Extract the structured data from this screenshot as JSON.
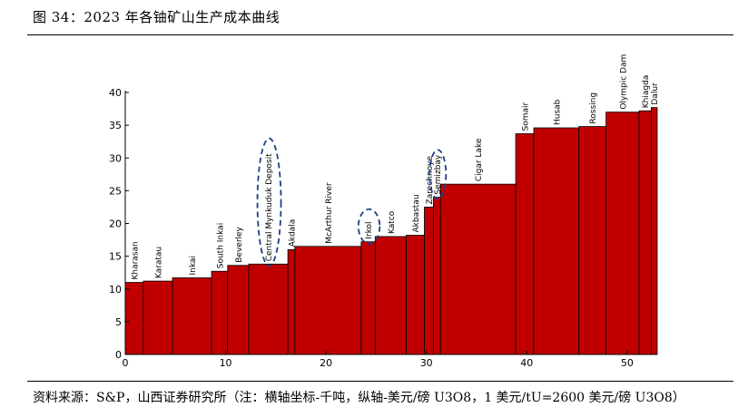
{
  "figure_title": "图 34：2023 年各铀矿山生产成本曲线",
  "source_note": "资料来源：S&P，山西证券研究所（注：横轴坐标-千吨，纵轴-美元/磅 U3O8，1 美元/tU=2600 美元/磅 U3O8）",
  "colors": {
    "bar": "#c00000",
    "highlight": "#1f3d8a"
  },
  "chart_data": {
    "type": "bar",
    "subtype": "cost-curve",
    "title": "2023 年各铀矿山生产成本曲线",
    "xlabel": "千吨",
    "ylabel": "美元/磅 U3O8",
    "xlim": [
      0,
      53
    ],
    "ylim": [
      0,
      40
    ],
    "xticks": [
      0,
      10,
      20,
      30,
      40,
      50
    ],
    "yticks": [
      0,
      5,
      10,
      15,
      20,
      25,
      30,
      35,
      40
    ],
    "bars": [
      {
        "name": "Kharasan",
        "x0": 0.0,
        "x1": 1.8,
        "value": 11.0
      },
      {
        "name": "Karatau",
        "x0": 1.8,
        "x1": 4.7,
        "value": 11.2
      },
      {
        "name": "Inkai",
        "x0": 4.7,
        "x1": 8.6,
        "value": 11.7
      },
      {
        "name": "South Inkai",
        "x0": 8.6,
        "x1": 10.2,
        "value": 12.7
      },
      {
        "name": "Beverley",
        "x0": 10.2,
        "x1": 12.3,
        "value": 13.6
      },
      {
        "name": "Central Mynkuduk Deposit",
        "x0": 12.3,
        "x1": 16.2,
        "value": 13.8
      },
      {
        "name": "Akdala",
        "x0": 16.2,
        "x1": 16.9,
        "value": 16.0
      },
      {
        "name": "McArthur River",
        "x0": 16.9,
        "x1": 23.5,
        "value": 16.5
      },
      {
        "name": "Irkol",
        "x0": 23.5,
        "x1": 24.9,
        "value": 17.2
      },
      {
        "name": "Katco",
        "x0": 24.9,
        "x1": 28.0,
        "value": 18.0
      },
      {
        "name": "Akbastau",
        "x0": 28.0,
        "x1": 29.8,
        "value": 18.2
      },
      {
        "name": "Zarechnoye",
        "x0": 29.8,
        "x1": 30.7,
        "value": 22.5
      },
      {
        "name": "Semizbay",
        "x0": 30.7,
        "x1": 31.4,
        "value": 24.0
      },
      {
        "name": "Cigar Lake",
        "x0": 31.4,
        "x1": 38.9,
        "value": 26.0
      },
      {
        "name": "Somair",
        "x0": 38.9,
        "x1": 40.7,
        "value": 33.7
      },
      {
        "name": "Husab",
        "x0": 40.7,
        "x1": 45.2,
        "value": 34.6
      },
      {
        "name": "Rossing",
        "x0": 45.2,
        "x1": 47.9,
        "value": 34.8
      },
      {
        "name": "Olympic Dam",
        "x0": 47.9,
        "x1": 51.2,
        "value": 37.0
      },
      {
        "name": "Khiagda",
        "x0": 51.2,
        "x1": 52.4,
        "value": 37.2
      },
      {
        "name": "Dalur",
        "x0": 52.4,
        "x1": 53.0,
        "value": 37.7
      }
    ],
    "highlighted": [
      "Central Mynkuduk Deposit",
      "Irkol",
      "Semizbay"
    ]
  }
}
